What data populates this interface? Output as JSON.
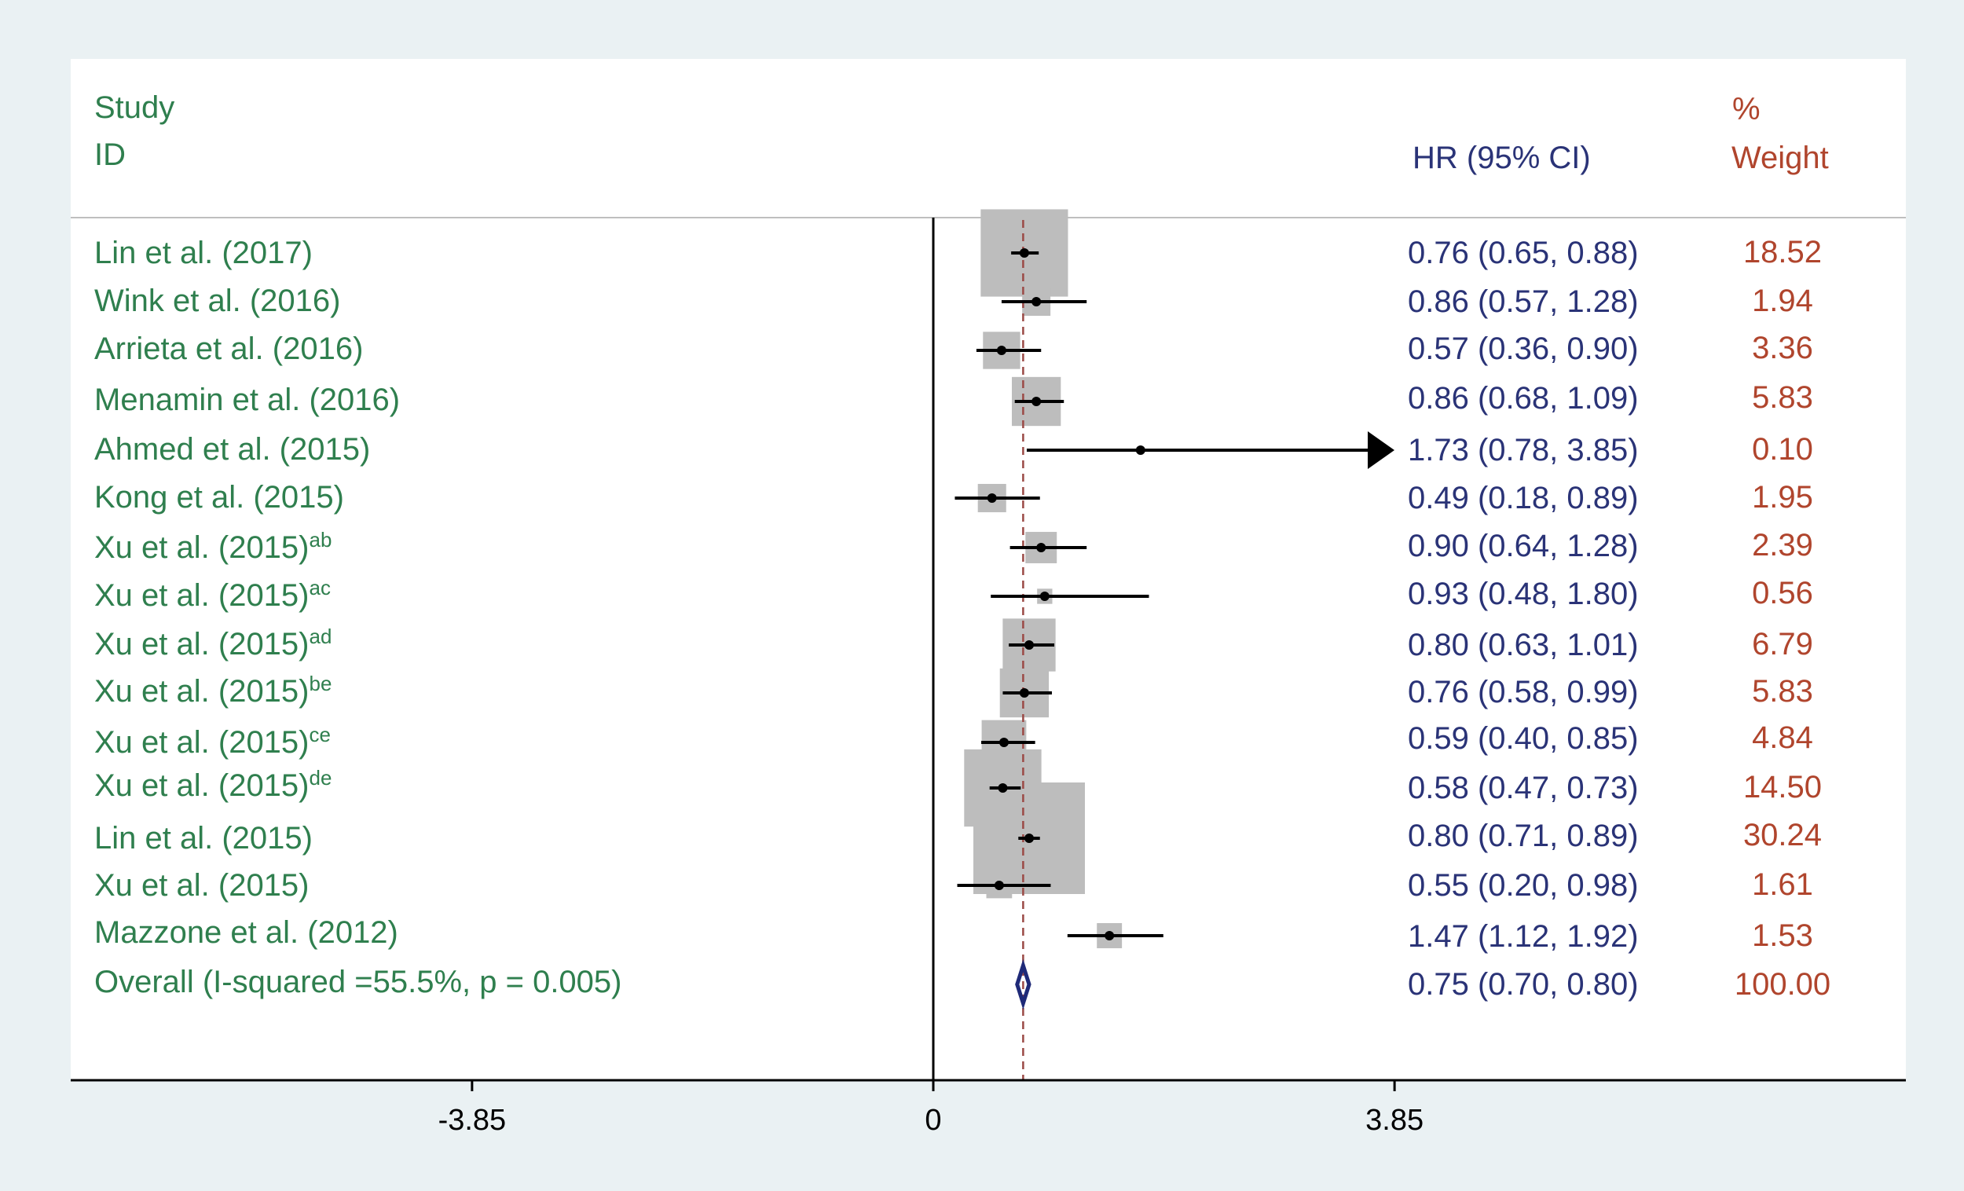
{
  "chart_data": {
    "type": "forest",
    "header": {
      "study_line1": "Study",
      "study_line2": "ID",
      "hr_label": "HR (95% CI)",
      "weight_line1": "%",
      "weight_line2": "Weight"
    },
    "studies": [
      {
        "label": "Lin et al. (2017)",
        "sup": "",
        "hr": 0.76,
        "lo": 0.65,
        "hi": 0.88,
        "ci_text": "0.76 (0.65, 0.88)",
        "weight": "18.52"
      },
      {
        "label": "Wink et al. (2016)",
        "sup": "",
        "hr": 0.86,
        "lo": 0.57,
        "hi": 1.28,
        "ci_text": "0.86 (0.57, 1.28)",
        "weight": "1.94"
      },
      {
        "label": "Arrieta et al. (2016)",
        "sup": "",
        "hr": 0.57,
        "lo": 0.36,
        "hi": 0.9,
        "ci_text": "0.57 (0.36, 0.90)",
        "weight": "3.36"
      },
      {
        "label": "Menamin et al. (2016)",
        "sup": "",
        "hr": 0.86,
        "lo": 0.68,
        "hi": 1.09,
        "ci_text": "0.86 (0.68, 1.09)",
        "weight": "5.83"
      },
      {
        "label": "Ahmed et al. (2015)",
        "sup": "",
        "hr": 1.73,
        "lo": 0.78,
        "hi": 3.85,
        "ci_text": "1.73 (0.78, 3.85)",
        "weight": "0.10"
      },
      {
        "label": "Kong et al. (2015)",
        "sup": "",
        "hr": 0.49,
        "lo": 0.18,
        "hi": 0.89,
        "ci_text": "0.49 (0.18, 0.89)",
        "weight": "1.95"
      },
      {
        "label": "Xu et al. (2015)",
        "sup": "ab",
        "hr": 0.9,
        "lo": 0.64,
        "hi": 1.28,
        "ci_text": "0.90 (0.64, 1.28)",
        "weight": "2.39"
      },
      {
        "label": "Xu et al. (2015)",
        "sup": "ac",
        "hr": 0.93,
        "lo": 0.48,
        "hi": 1.8,
        "ci_text": "0.93 (0.48, 1.80)",
        "weight": "0.56"
      },
      {
        "label": "Xu et al. (2015)",
        "sup": "ad",
        "hr": 0.8,
        "lo": 0.63,
        "hi": 1.01,
        "ci_text": "0.80 (0.63, 1.01)",
        "weight": "6.79"
      },
      {
        "label": "Xu et al. (2015)",
        "sup": "be",
        "hr": 0.76,
        "lo": 0.58,
        "hi": 0.99,
        "ci_text": "0.76 (0.58, 0.99)",
        "weight": "5.83"
      },
      {
        "label": "Xu et al. (2015)",
        "sup": "ce",
        "hr": 0.59,
        "lo": 0.4,
        "hi": 0.85,
        "ci_text": "0.59 (0.40, 0.85)",
        "weight": "4.84"
      },
      {
        "label": "Xu et al. (2015)",
        "sup": "de",
        "hr": 0.58,
        "lo": 0.47,
        "hi": 0.73,
        "ci_text": "0.58 (0.47, 0.73)",
        "weight": "14.50"
      },
      {
        "label": "Lin et al. (2015)",
        "sup": "",
        "hr": 0.8,
        "lo": 0.71,
        "hi": 0.89,
        "ci_text": "0.80 (0.71, 0.89)",
        "weight": "30.24"
      },
      {
        "label": "Xu et al. (2015)",
        "sup": "",
        "hr": 0.55,
        "lo": 0.2,
        "hi": 0.98,
        "ci_text": "0.55 (0.20, 0.98)",
        "weight": "1.61"
      },
      {
        "label": "Mazzone et al. (2012)",
        "sup": "",
        "hr": 1.47,
        "lo": 1.12,
        "hi": 1.92,
        "ci_text": "1.47 (1.12, 1.92)",
        "weight": "1.53"
      }
    ],
    "overall": {
      "label": "Overall (I-squared =55.5%, p = 0.005)",
      "hr": 0.75,
      "lo": 0.7,
      "hi": 0.8,
      "ci_text": "0.75 (0.70, 0.80)",
      "weight": "100.00"
    },
    "xaxis": {
      "ticks": [
        -3.85,
        0,
        3.85
      ],
      "tick_labels": [
        "-3.85",
        "0",
        "3.85"
      ],
      "range": [
        -7.22,
        8.21
      ]
    },
    "reference_line": 0,
    "colors": {
      "study_label": "#2f7f4e",
      "ci_text": "#2a3377",
      "weight_text": "#b0452d",
      "box": "#bdbdbd",
      "overall_line": "#9b4a46",
      "diamond": "#1f2a78"
    }
  }
}
